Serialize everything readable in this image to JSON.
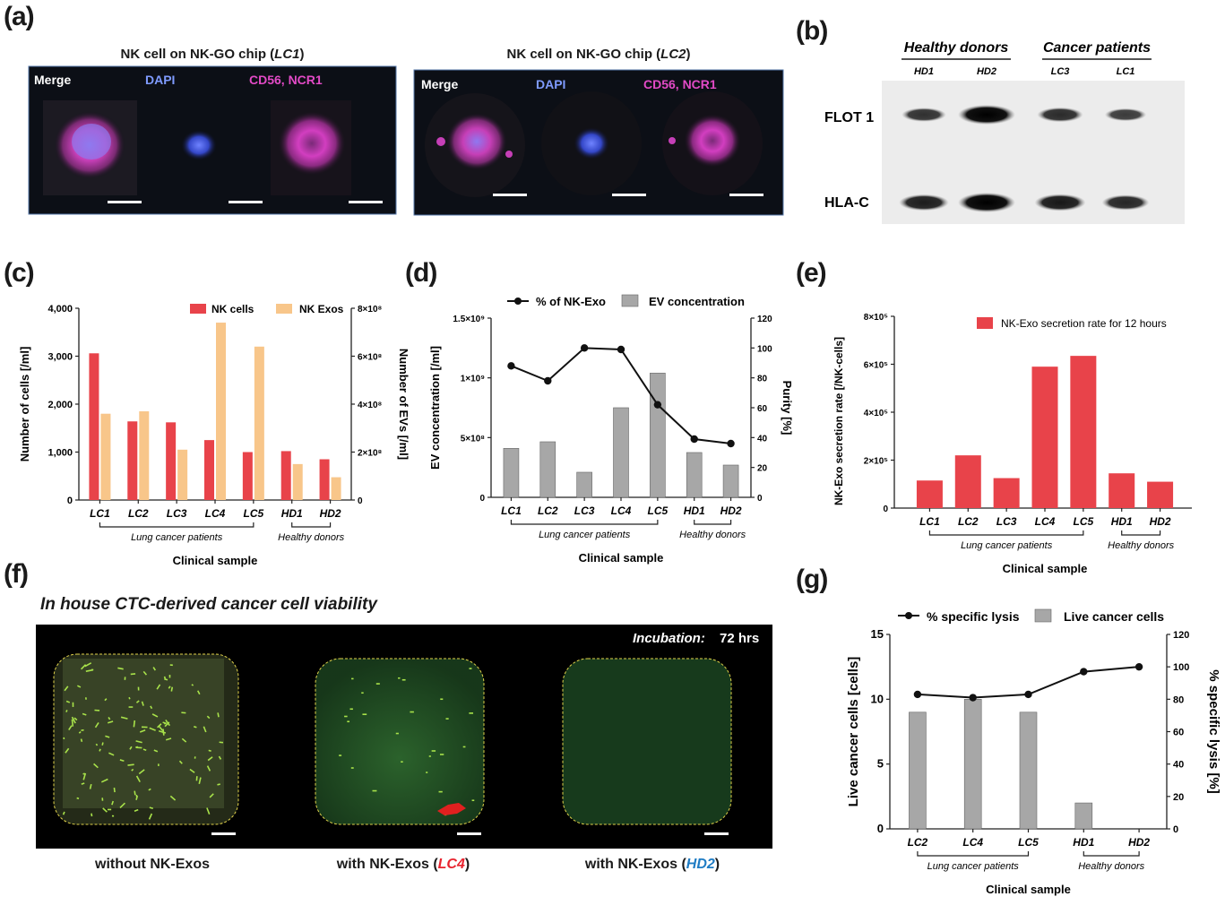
{
  "panel_labels": {
    "a": "(a)",
    "b": "(b)",
    "c": "(c)",
    "d": "(d)",
    "e": "(e)",
    "f": "(f)",
    "g": "(g)"
  },
  "colors": {
    "nk_red": "#e8434a",
    "exo_orange": "#f8c68a",
    "grey_bar": "#a7a7a7",
    "green_fluor": "#a8e24a",
    "dapi_blue": "#6f83e8",
    "merge_pink": "#d43ab0",
    "lc4_red": "#e8232e",
    "hd2_blue": "#1f7cc4"
  },
  "panel_a": {
    "left": {
      "title": "NK cell on NK-GO chip (",
      "title_sample": "LC1",
      "title_close": ")",
      "channel_merge": "Merge",
      "channel_dapi": "DAPI",
      "channel_cd56": "CD56, NCR1"
    },
    "right": {
      "title": "NK cell on NK-GO chip (",
      "title_sample": "LC2",
      "title_close": ")",
      "channel_merge": "Merge",
      "channel_dapi": "DAPI",
      "channel_cd56": "CD56, NCR1"
    }
  },
  "panel_b": {
    "group_healthy": "Healthy donors",
    "group_cancer": "Cancer patients",
    "lanes": [
      "HD1",
      "HD2",
      "LC3",
      "LC1"
    ],
    "row_flot1": "FLOT 1",
    "row_hlac": "HLA-C",
    "band_strength_flot1": [
      0.55,
      1.0,
      0.6,
      0.45
    ],
    "band_strength_hlac": [
      0.7,
      1.0,
      0.75,
      0.6
    ]
  },
  "panel_f": {
    "title": "In house CTC-derived cancer cell viability",
    "incubation_label": "Incubation:",
    "incubation_value": "72 hrs",
    "caption_1": "without NK-Exos",
    "caption_2_prefix": "with NK-Exos (",
    "caption_2_sample": "LC4",
    "caption_3_prefix": "with NK-Exos (",
    "caption_3_sample": "HD2",
    "caption_close": ")"
  },
  "chart_data": [
    {
      "panel": "c",
      "type": "bar",
      "categories": [
        "LC1",
        "LC2",
        "LC3",
        "LC4",
        "LC5",
        "HD1",
        "HD2"
      ],
      "series": [
        {
          "name": "NK cells",
          "axis": "left",
          "values": [
            3060,
            1640,
            1620,
            1250,
            1000,
            1020,
            850
          ]
        },
        {
          "name": "NK Exos",
          "axis": "right",
          "values": [
            360000000,
            370000000,
            210000000,
            740000000,
            640000000,
            150000000,
            95000000
          ]
        }
      ],
      "ylabel": "Number of cells [/ml]",
      "ylim": [
        0,
        4000
      ],
      "yticks": [
        "0",
        "1,000",
        "2,000",
        "3,000",
        "4,000"
      ],
      "y2label": "Number of EVs [/ml]",
      "y2lim": [
        0,
        800000000
      ],
      "y2ticks": [
        "0",
        "2×10⁸",
        "4×10⁸",
        "6×10⁸",
        "8×10⁸"
      ],
      "xlabel": "Clinical sample",
      "group_lung": "Lung cancer patients",
      "group_healthy": "Healthy donors",
      "legend_position": "top-right"
    },
    {
      "panel": "d",
      "type": "bar+line",
      "categories": [
        "LC1",
        "LC2",
        "LC3",
        "LC4",
        "LC5",
        "HD1",
        "HD2"
      ],
      "series": [
        {
          "name": "EV concentration",
          "axis": "left",
          "type": "bar",
          "values": [
            410000000,
            465000000,
            210000000,
            750000000,
            1040000000,
            375000000,
            270000000
          ]
        },
        {
          "name": "% of NK-Exo",
          "axis": "right",
          "type": "line",
          "values": [
            88,
            78,
            100,
            99,
            62,
            39,
            36
          ]
        }
      ],
      "ylabel": "EV concentration [/ml]",
      "ylim": [
        0,
        1500000000
      ],
      "yticks": [
        "0",
        "5×10⁸",
        "1×10⁹",
        "1.5×10⁹"
      ],
      "y2label": "Purity [%]",
      "y2lim": [
        0,
        120
      ],
      "y2ticks": [
        "0",
        "20",
        "40",
        "60",
        "80",
        "100",
        "120"
      ],
      "xlabel": "Clinical sample",
      "group_lung": "Lung cancer patients",
      "group_healthy": "Healthy donors",
      "legend_position": "top"
    },
    {
      "panel": "e",
      "type": "bar",
      "categories": [
        "LC1",
        "LC2",
        "LC3",
        "LC4",
        "LC5",
        "HD1",
        "HD2"
      ],
      "series": [
        {
          "name": "NK-Exo secretion rate for 12 hours",
          "values": [
            115000,
            220000,
            125000,
            590000,
            635000,
            145000,
            110000
          ]
        }
      ],
      "ylabel": "NK-Exo secretion rate [/NK-cells]",
      "ylim": [
        0,
        800000
      ],
      "yticks": [
        "0",
        "2×10⁵",
        "4×10⁵",
        "6×10⁵",
        "8×10⁵"
      ],
      "xlabel": "Clinical sample",
      "group_lung": "Lung cancer patients",
      "group_healthy": "Healthy donors",
      "legend_position": "top-right"
    },
    {
      "panel": "g",
      "type": "bar+line",
      "categories": [
        "LC2",
        "LC4",
        "LC5",
        "HD1",
        "HD2"
      ],
      "series": [
        {
          "name": "Live cancer cells",
          "axis": "left",
          "type": "bar",
          "values": [
            9,
            10,
            9,
            2,
            0
          ]
        },
        {
          "name": "% specific lysis",
          "axis": "right",
          "type": "line",
          "values": [
            83,
            81,
            83,
            97,
            100
          ]
        }
      ],
      "ylabel": "Live cancer cells [cells]",
      "ylim": [
        0,
        15
      ],
      "yticks": [
        "0",
        "5",
        "10",
        "15"
      ],
      "y2label": "% specific lysis [%]",
      "y2lim": [
        0,
        120
      ],
      "y2ticks": [
        "0",
        "20",
        "40",
        "60",
        "80",
        "100",
        "120"
      ],
      "xlabel": "Clinical sample",
      "group_lung": "Lung cancer patients",
      "group_healthy": "Healthy donors",
      "legend_position": "top"
    }
  ]
}
